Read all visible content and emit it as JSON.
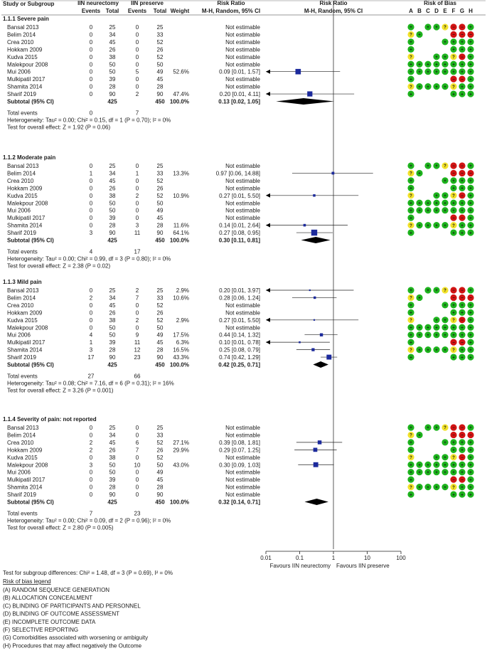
{
  "columns": {
    "study": "Study or Subgroup",
    "g1": "IIN neurectomy",
    "g2": "IIN preserve",
    "events": "Events",
    "total": "Total",
    "weight": "Weight",
    "rr": "Risk Ratio",
    "method": "M-H, Random, 95% CI",
    "rob": "Risk of Bias",
    "rob_letters": [
      "A",
      "B",
      "C",
      "D",
      "E",
      "F",
      "G",
      "H"
    ]
  },
  "labels": {
    "not_estimable": "Not estimable",
    "total_events": "Total events",
    "subtotal": "Subtotal (95% CI)"
  },
  "colors": {
    "low": "#1db31d",
    "unclear": "#f2e22b",
    "high": "#d11313",
    "marker": "#1c2a9c",
    "diamond": "#000000"
  },
  "chart_data": {
    "type": "forest",
    "title": "Risk Ratio M-H, Random, 95% CI",
    "xscale": "log",
    "xlim": [
      0.01,
      100
    ],
    "xticks": [
      "0.01",
      "0.1",
      "1",
      "10",
      "100"
    ],
    "xlabel_left": "Favours IIN neurectomy",
    "xlabel_right": "Favours IIN preserve",
    "subgroups": [
      {
        "title": "1.1.1 Severe pain",
        "rows": [
          {
            "study": "Bansal 2013",
            "e1": "0",
            "t1": "25",
            "e2": "0",
            "t2": "25",
            "w": "",
            "rr": "Not estimable",
            "est": null,
            "lo": null,
            "hi": null,
            "rob": "G.GGYRRG"
          },
          {
            "study": "Belim 2014",
            "e1": "0",
            "t1": "34",
            "e2": "0",
            "t2": "33",
            "w": "",
            "rr": "Not estimable",
            "est": null,
            "lo": null,
            "hi": null,
            "rob": "YG...RRR"
          },
          {
            "study": "Crea 2010",
            "e1": "0",
            "t1": "45",
            "e2": "0",
            "t2": "52",
            "w": "",
            "rr": "Not estimable",
            "est": null,
            "lo": null,
            "hi": null,
            "rob": "G...GGGG"
          },
          {
            "study": "Hokkam 2009",
            "e1": "0",
            "t1": "26",
            "e2": "0",
            "t2": "26",
            "w": "",
            "rr": "Not estimable",
            "est": null,
            "lo": null,
            "hi": null,
            "rob": "G....GGG"
          },
          {
            "study": "Kudva 2015",
            "e1": "0",
            "t1": "38",
            "e2": "0",
            "t2": "52",
            "w": "",
            "rr": "Not estimable",
            "est": null,
            "lo": null,
            "hi": null,
            "rob": "Y..GGYRG"
          },
          {
            "study": "Malekpour 2008",
            "e1": "0",
            "t1": "50",
            "e2": "0",
            "t2": "50",
            "w": "",
            "rr": "Not estimable",
            "est": null,
            "lo": null,
            "hi": null,
            "rob": "GGGGGGGG"
          },
          {
            "study": "Mui 2006",
            "e1": "0",
            "t1": "50",
            "e2": "5",
            "t2": "49",
            "w": "52.6%",
            "rr": "0.09 [0.01, 1.57]",
            "est": 0.09,
            "lo": 0.01,
            "hi": 1.57,
            "rob": "GGGGGGGG"
          },
          {
            "study": "Mulkipatil 2017",
            "e1": "0",
            "t1": "39",
            "e2": "0",
            "t2": "45",
            "w": "",
            "rr": "Not estimable",
            "est": null,
            "lo": null,
            "hi": null,
            "rob": "G....RRG"
          },
          {
            "study": "Shamita 2014",
            "e1": "0",
            "t1": "28",
            "e2": "0",
            "t2": "28",
            "w": "",
            "rr": "Not estimable",
            "est": null,
            "lo": null,
            "hi": null,
            "rob": "YGGGGYGG"
          },
          {
            "study": "Sharif 2019",
            "e1": "0",
            "t1": "90",
            "e2": "2",
            "t2": "90",
            "w": "47.4%",
            "rr": "0.20 [0.01, 4.11]",
            "est": 0.2,
            "lo": 0.01,
            "hi": 4.11,
            "rob": "G....GGG"
          }
        ],
        "subtotal": {
          "t1": "425",
          "t2": "450",
          "w": "100.0%",
          "rr": "0.13 [0.02, 1.05]",
          "est": 0.13,
          "lo": 0.02,
          "hi": 1.05
        },
        "total_events": {
          "e1": "0",
          "e2": "7"
        },
        "heterogeneity": "Heterogeneity: Tau² = 0.00; Chi² = 0.15, df = 1 (P = 0.70); I² = 0%",
        "overall": "Test for overall effect: Z = 1.92 (P = 0.06)"
      },
      {
        "title": "1.1.2 Moderate pain",
        "rows": [
          {
            "study": "Bansal 2013",
            "e1": "0",
            "t1": "25",
            "e2": "0",
            "t2": "25",
            "w": "",
            "rr": "Not estimable",
            "est": null,
            "lo": null,
            "hi": null,
            "rob": "G.GGYRRG"
          },
          {
            "study": "Belim 2014",
            "e1": "1",
            "t1": "34",
            "e2": "1",
            "t2": "33",
            "w": "13.3%",
            "rr": "0.97 [0.06, 14.88]",
            "est": 0.97,
            "lo": 0.06,
            "hi": 14.88,
            "rob": "YG...RRR"
          },
          {
            "study": "Crea 2010",
            "e1": "0",
            "t1": "45",
            "e2": "0",
            "t2": "52",
            "w": "",
            "rr": "Not estimable",
            "est": null,
            "lo": null,
            "hi": null,
            "rob": "G...GGGG"
          },
          {
            "study": "Hokkam 2009",
            "e1": "0",
            "t1": "26",
            "e2": "0",
            "t2": "26",
            "w": "",
            "rr": "Not estimable",
            "est": null,
            "lo": null,
            "hi": null,
            "rob": "G....GGG"
          },
          {
            "study": "Kudva 2015",
            "e1": "0",
            "t1": "38",
            "e2": "2",
            "t2": "52",
            "w": "10.9%",
            "rr": "0.27 [0.01, 5.50]",
            "est": 0.27,
            "lo": 0.01,
            "hi": 5.5,
            "rob": "Y..GGYRG"
          },
          {
            "study": "Malekpour 2008",
            "e1": "0",
            "t1": "50",
            "e2": "0",
            "t2": "50",
            "w": "",
            "rr": "Not estimable",
            "est": null,
            "lo": null,
            "hi": null,
            "rob": "GGGGGGGG"
          },
          {
            "study": "Mui 2006",
            "e1": "0",
            "t1": "50",
            "e2": "0",
            "t2": "49",
            "w": "",
            "rr": "Not estimable",
            "est": null,
            "lo": null,
            "hi": null,
            "rob": "GGGGGGGG"
          },
          {
            "study": "Mulkipatil 2017",
            "e1": "0",
            "t1": "39",
            "e2": "0",
            "t2": "45",
            "w": "",
            "rr": "Not estimable",
            "est": null,
            "lo": null,
            "hi": null,
            "rob": "G....RRG"
          },
          {
            "study": "Shamita 2014",
            "e1": "0",
            "t1": "28",
            "e2": "3",
            "t2": "28",
            "w": "11.6%",
            "rr": "0.14 [0.01, 2.64]",
            "est": 0.14,
            "lo": 0.01,
            "hi": 2.64,
            "rob": "YGGGGYGG"
          },
          {
            "study": "Sharif 2019",
            "e1": "3",
            "t1": "90",
            "e2": "11",
            "t2": "90",
            "w": "64.1%",
            "rr": "0.27 [0.08, 0.95]",
            "est": 0.27,
            "lo": 0.08,
            "hi": 0.95,
            "rob": "G....GGG"
          }
        ],
        "subtotal": {
          "t1": "425",
          "t2": "450",
          "w": "100.0%",
          "rr": "0.30 [0.11, 0.81]",
          "est": 0.3,
          "lo": 0.11,
          "hi": 0.81
        },
        "total_events": {
          "e1": "4",
          "e2": "17"
        },
        "heterogeneity": "Heterogeneity: Tau² = 0.00; Chi² = 0.99, df = 3 (P = 0.80); I² = 0%",
        "overall": "Test for overall effect: Z = 2.38 (P = 0.02)"
      },
      {
        "title": "1.1.3 Mild pain",
        "rows": [
          {
            "study": "Bansal 2013",
            "e1": "0",
            "t1": "25",
            "e2": "2",
            "t2": "25",
            "w": "2.9%",
            "rr": "0.20 [0.01, 3.97]",
            "est": 0.2,
            "lo": 0.01,
            "hi": 3.97,
            "rob": "G.GGYRRG"
          },
          {
            "study": "Belim 2014",
            "e1": "2",
            "t1": "34",
            "e2": "7",
            "t2": "33",
            "w": "10.6%",
            "rr": "0.28 [0.06, 1.24]",
            "est": 0.28,
            "lo": 0.06,
            "hi": 1.24,
            "rob": "YG...RRR"
          },
          {
            "study": "Crea 2010",
            "e1": "0",
            "t1": "45",
            "e2": "0",
            "t2": "52",
            "w": "",
            "rr": "Not estimable",
            "est": null,
            "lo": null,
            "hi": null,
            "rob": "G...GGGG"
          },
          {
            "study": "Hokkam 2009",
            "e1": "0",
            "t1": "26",
            "e2": "0",
            "t2": "26",
            "w": "",
            "rr": "Not estimable",
            "est": null,
            "lo": null,
            "hi": null,
            "rob": "G....GGG"
          },
          {
            "study": "Kudva 2015",
            "e1": "0",
            "t1": "38",
            "e2": "2",
            "t2": "52",
            "w": "2.9%",
            "rr": "0.27 [0.01, 5.50]",
            "est": 0.27,
            "lo": 0.01,
            "hi": 5.5,
            "rob": "Y..GGYRG"
          },
          {
            "study": "Malekpour 2008",
            "e1": "0",
            "t1": "50",
            "e2": "0",
            "t2": "50",
            "w": "",
            "rr": "Not estimable",
            "est": null,
            "lo": null,
            "hi": null,
            "rob": "GGGGGGGG"
          },
          {
            "study": "Mui 2006",
            "e1": "4",
            "t1": "50",
            "e2": "9",
            "t2": "49",
            "w": "17.5%",
            "rr": "0.44 [0.14, 1.32]",
            "est": 0.44,
            "lo": 0.14,
            "hi": 1.32,
            "rob": "GGGGGGGG"
          },
          {
            "study": "Mulkipatil 2017",
            "e1": "1",
            "t1": "39",
            "e2": "11",
            "t2": "45",
            "w": "6.3%",
            "rr": "0.10 [0.01, 0.78]",
            "est": 0.1,
            "lo": 0.01,
            "hi": 0.78,
            "rob": "G....RRG"
          },
          {
            "study": "Shamita 2014",
            "e1": "3",
            "t1": "28",
            "e2": "12",
            "t2": "28",
            "w": "16.5%",
            "rr": "0.25 [0.08, 0.79]",
            "est": 0.25,
            "lo": 0.08,
            "hi": 0.79,
            "rob": "YGGGGYGG"
          },
          {
            "study": "Sharif 2019",
            "e1": "17",
            "t1": "90",
            "e2": "23",
            "t2": "90",
            "w": "43.3%",
            "rr": "0.74 [0.42, 1.29]",
            "est": 0.74,
            "lo": 0.42,
            "hi": 1.29,
            "rob": "G....GGG"
          }
        ],
        "subtotal": {
          "t1": "425",
          "t2": "450",
          "w": "100.0%",
          "rr": "0.42 [0.25, 0.71]",
          "est": 0.42,
          "lo": 0.25,
          "hi": 0.71
        },
        "total_events": {
          "e1": "27",
          "e2": "66"
        },
        "heterogeneity": "Heterogeneity: Tau² = 0.08; Chi² = 7.16, df = 6 (P = 0.31); I² = 16%",
        "overall": "Test for overall effect: Z = 3.26 (P = 0.001)"
      },
      {
        "title": "1.1.4 Severity of pain: not reported",
        "rows": [
          {
            "study": "Bansal 2013",
            "e1": "0",
            "t1": "25",
            "e2": "0",
            "t2": "25",
            "w": "",
            "rr": "Not estimable",
            "est": null,
            "lo": null,
            "hi": null,
            "rob": "G.GGYRRG"
          },
          {
            "study": "Belim 2014",
            "e1": "0",
            "t1": "34",
            "e2": "0",
            "t2": "33",
            "w": "",
            "rr": "Not estimable",
            "est": null,
            "lo": null,
            "hi": null,
            "rob": "YG...RRR"
          },
          {
            "study": "Crea 2010",
            "e1": "2",
            "t1": "45",
            "e2": "6",
            "t2": "52",
            "w": "27.1%",
            "rr": "0.39 [0.08, 1.81]",
            "est": 0.39,
            "lo": 0.08,
            "hi": 1.81,
            "rob": "G...GGGG"
          },
          {
            "study": "Hokkam 2009",
            "e1": "2",
            "t1": "26",
            "e2": "7",
            "t2": "26",
            "w": "29.9%",
            "rr": "0.29 [0.07, 1.25]",
            "est": 0.29,
            "lo": 0.07,
            "hi": 1.25,
            "rob": "G....GGG"
          },
          {
            "study": "Kudva 2015",
            "e1": "0",
            "t1": "38",
            "e2": "0",
            "t2": "52",
            "w": "",
            "rr": "Not estimable",
            "est": null,
            "lo": null,
            "hi": null,
            "rob": "Y..GGYRG"
          },
          {
            "study": "Malekpour 2008",
            "e1": "3",
            "t1": "50",
            "e2": "10",
            "t2": "50",
            "w": "43.0%",
            "rr": "0.30 [0.09, 1.03]",
            "est": 0.3,
            "lo": 0.09,
            "hi": 1.03,
            "rob": "GGGGGGGG"
          },
          {
            "study": "Mui 2006",
            "e1": "0",
            "t1": "50",
            "e2": "0",
            "t2": "49",
            "w": "",
            "rr": "Not estimable",
            "est": null,
            "lo": null,
            "hi": null,
            "rob": "GGGGGGGG"
          },
          {
            "study": "Mulkipatil 2017",
            "e1": "0",
            "t1": "39",
            "e2": "0",
            "t2": "45",
            "w": "",
            "rr": "Not estimable",
            "est": null,
            "lo": null,
            "hi": null,
            "rob": "G....RRG"
          },
          {
            "study": "Shamita 2014",
            "e1": "0",
            "t1": "28",
            "e2": "0",
            "t2": "28",
            "w": "",
            "rr": "Not estimable",
            "est": null,
            "lo": null,
            "hi": null,
            "rob": "YGGGGYGG"
          },
          {
            "study": "Sharif 2019",
            "e1": "0",
            "t1": "90",
            "e2": "0",
            "t2": "90",
            "w": "",
            "rr": "Not estimable",
            "est": null,
            "lo": null,
            "hi": null,
            "rob": "G....GGG"
          }
        ],
        "subtotal": {
          "t1": "425",
          "t2": "450",
          "w": "100.0%",
          "rr": "0.32 [0.14, 0.71]",
          "est": 0.32,
          "lo": 0.14,
          "hi": 0.71
        },
        "total_events": {
          "e1": "7",
          "e2": "23"
        },
        "heterogeneity": "Heterogeneity: Tau² = 0.00; Chi² = 0.09, df = 2 (P = 0.96); I² = 0%",
        "overall": "Test for overall effect: Z = 2.80 (P = 0.005)"
      }
    ],
    "subgroup_test": "Test for subgroup differences: Chi² = 1.48, df = 3 (P = 0.69), I² = 0%"
  },
  "legend": {
    "title": "Risk of bias legend",
    "items": [
      "(A) RANDOM SEQUENCE GENERATION",
      "(B) ALLOCATION CONCEALMENT",
      "(C) BLINDING OF PARTICIPANTS AND PERSONNEL",
      "(D) BLINDING OF OUTCOME ASSESSMENT",
      "(E) INCOMPLETE OUTCOME DATA",
      "(F) SELECTIVE REPORTING",
      "(G) Comorbidities associated with worsening or ambiguity",
      "(H) Procedures that may affect negatively the Outcome"
    ]
  }
}
